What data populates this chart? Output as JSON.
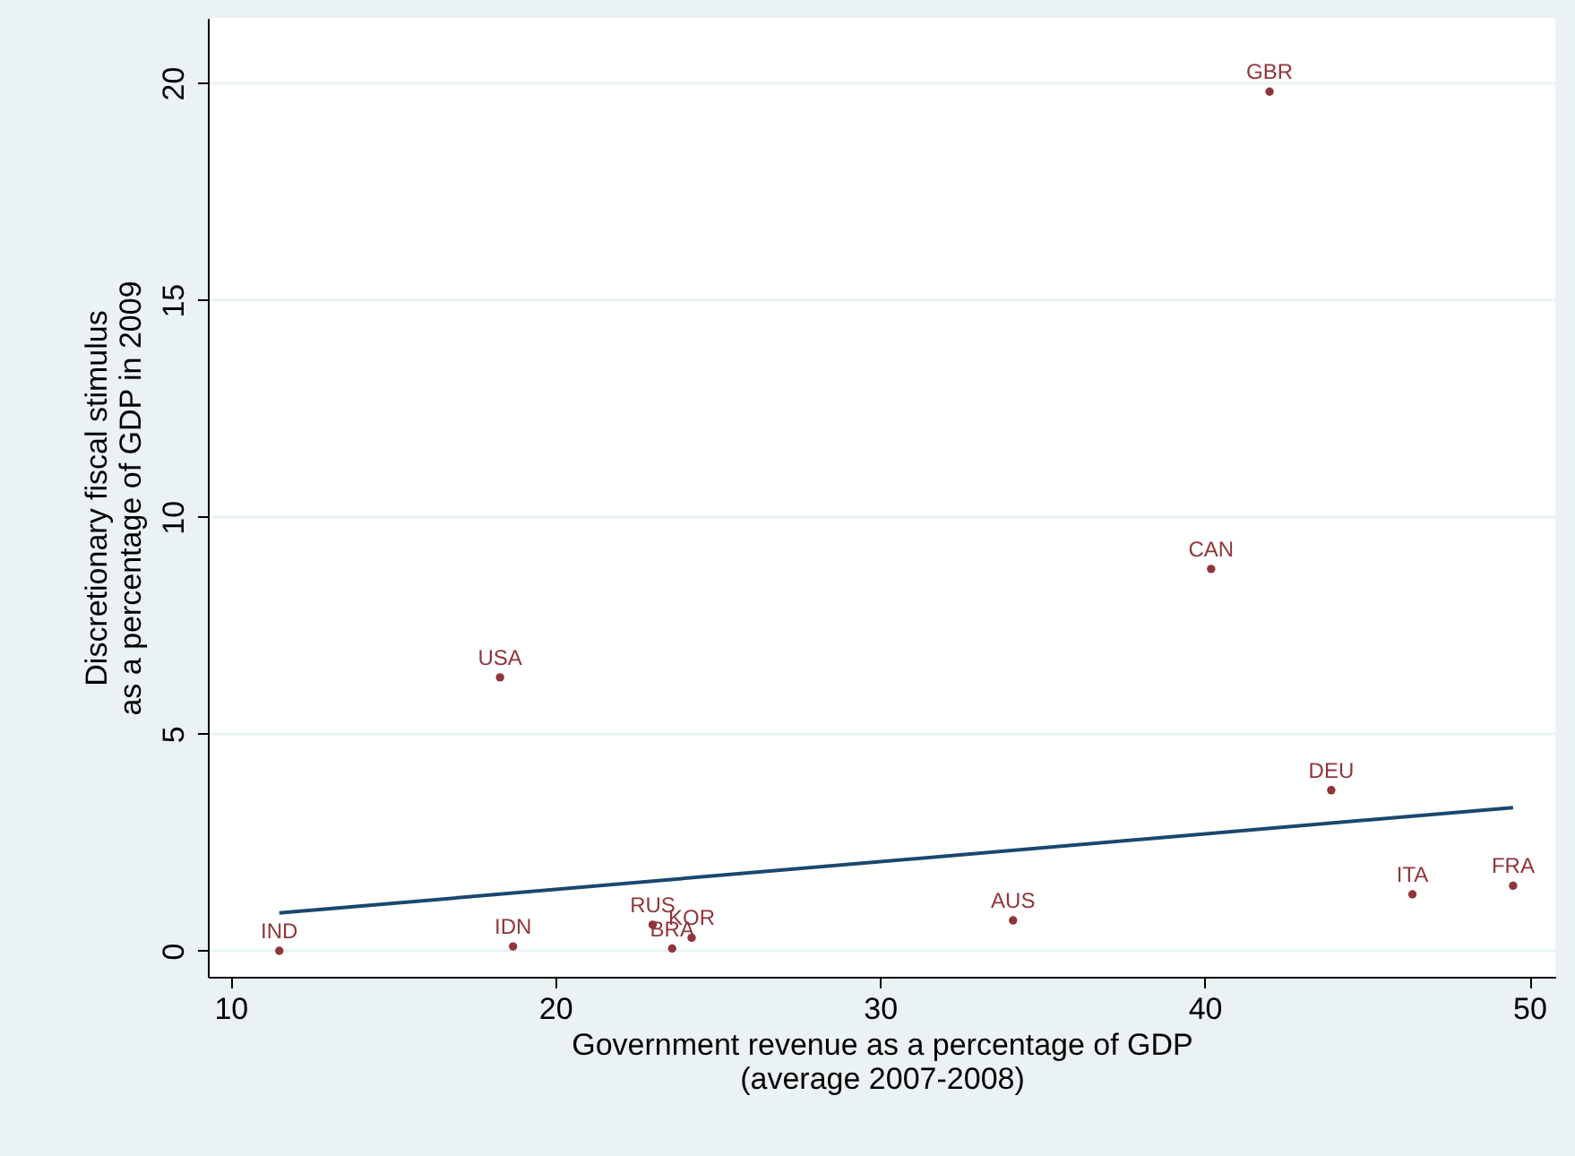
{
  "chart_data": {
    "type": "scatter",
    "xlabel": "Government revenue as a percentage of GDP\n(average 2007-2008)",
    "ylabel": "Discretionary fiscal stimulus\nas a percentage of GDP in 2009",
    "xlim": [
      9.3,
      50.8
    ],
    "ylim": [
      -0.6,
      21.5
    ],
    "xticks": [
      10,
      20,
      30,
      40,
      50
    ],
    "yticks": [
      0,
      5,
      10,
      15,
      20
    ],
    "grid": "y",
    "series": [
      {
        "marker": "circle",
        "color": "#90353b",
        "x": [
          11.5,
          18.7,
          18.3,
          23.0,
          23.6,
          24.2,
          34.1,
          40.2,
          42.0,
          43.9,
          46.4,
          49.5
        ],
        "values": [
          0,
          0.1,
          6.3,
          0.6,
          0.05,
          0.3,
          0.7,
          8.8,
          19.8,
          3.7,
          1.3,
          1.5
        ]
      },
      {
        "type": "line",
        "marker": "none",
        "color": "#1a476f",
        "x": [
          11.5,
          49.5
        ],
        "values": [
          0.87,
          3.3
        ]
      }
    ],
    "annotations": [
      {
        "text": "IND",
        "x": 11.5,
        "y": 0
      },
      {
        "text": "IDN",
        "x": 18.7,
        "y": 0.1
      },
      {
        "text": "USA",
        "x": 18.3,
        "y": 6.3
      },
      {
        "text": "RUS",
        "x": 23.0,
        "y": 0.6
      },
      {
        "text": "BRA",
        "x": 23.6,
        "y": 0.05
      },
      {
        "text": "KOR",
        "x": 24.2,
        "y": 0.3
      },
      {
        "text": "AUS",
        "x": 34.1,
        "y": 0.7
      },
      {
        "text": "CAN",
        "x": 40.2,
        "y": 8.8
      },
      {
        "text": "GBR",
        "x": 42.0,
        "y": 19.8
      },
      {
        "text": "DEU",
        "x": 43.9,
        "y": 3.7
      },
      {
        "text": "ITA",
        "x": 46.4,
        "y": 1.3
      },
      {
        "text": "FRA",
        "x": 49.5,
        "y": 1.5
      }
    ]
  }
}
